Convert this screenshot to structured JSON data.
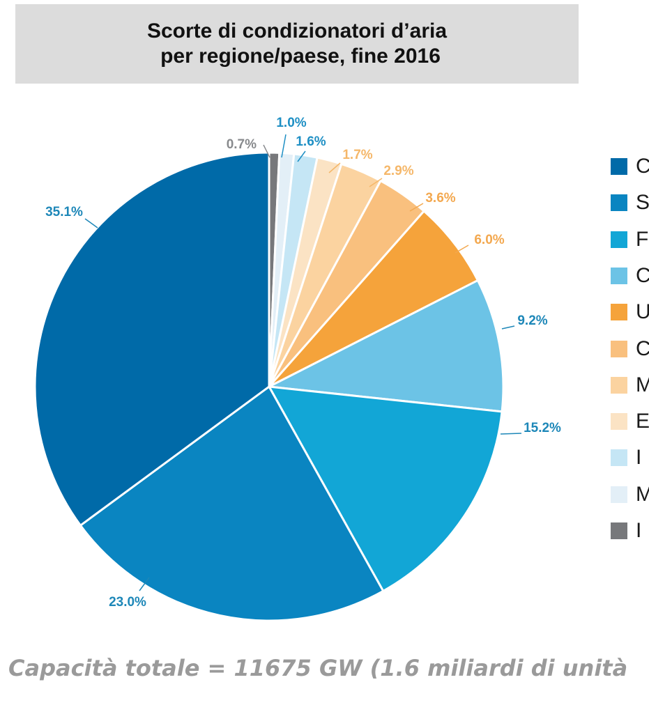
{
  "chart_data": {
    "type": "pie",
    "title_lines": [
      "Scorte di condizionatori d’aria",
      "per regione/paese, fine 2016"
    ],
    "slices": [
      {
        "label": "0.7%",
        "value": 0.7,
        "color": "#77787b",
        "text_color": "#888a8d"
      },
      {
        "label": "1.0%",
        "value": 1.0,
        "color": "#e3eff7",
        "text_color": "#1e8fc4"
      },
      {
        "label": "1.6%",
        "value": 1.6,
        "color": "#c5e6f5",
        "text_color": "#1e8fc4"
      },
      {
        "label": "1.7%",
        "value": 1.7,
        "color": "#fbe3c4",
        "text_color": "#f5b769"
      },
      {
        "label": "2.9%",
        "value": 2.9,
        "color": "#fbd3a0",
        "text_color": "#f5b769"
      },
      {
        "label": "3.6%",
        "value": 3.6,
        "color": "#f9c07e",
        "text_color": "#f3a84f"
      },
      {
        "label": "6.0%",
        "value": 6.0,
        "color": "#f5a33b",
        "text_color": "#f3a84f"
      },
      {
        "label": "9.2%",
        "value": 9.2,
        "color": "#6cc3e6",
        "text_color": "#1d87b8"
      },
      {
        "label": "15.2%",
        "value": 15.2,
        "color": "#12a6d6",
        "text_color": "#1d87b8"
      },
      {
        "label": "23.0%",
        "value": 23.0,
        "color": "#0a85c1",
        "text_color": "#1d87b8"
      },
      {
        "label": "35.1%",
        "value": 35.1,
        "color": "#006aa8",
        "text_color": "#1d87b8"
      }
    ],
    "legend": [
      {
        "text": "C",
        "color": "#006aa8"
      },
      {
        "text": "S",
        "color": "#0a85c1"
      },
      {
        "text": "F",
        "color": "#12a6d6"
      },
      {
        "text": "C",
        "color": "#6cc3e6"
      },
      {
        "text": "U",
        "color": "#f5a33b"
      },
      {
        "text": "C",
        "color": "#f9c07e"
      },
      {
        "text": "M",
        "color": "#fbd3a0"
      },
      {
        "text": "E",
        "color": "#fbe3c4"
      },
      {
        "text": "I",
        "color": "#c5e6f5"
      },
      {
        "text": "M",
        "color": "#e3eff7"
      },
      {
        "text": "I",
        "color": "#77787b"
      }
    ]
  },
  "footnote": "Capacità totale = 11675 GW (1.6 miliardi di unità"
}
